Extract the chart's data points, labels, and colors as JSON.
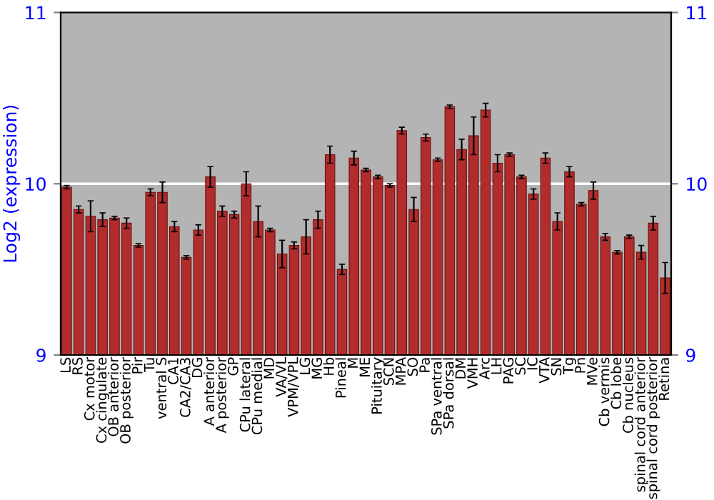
{
  "chart_data": {
    "type": "bar",
    "ylabel": "Log2 (expression)",
    "categories": [
      "LS",
      "RS",
      "Cx motor",
      "Cx cingulate",
      "OB anterior",
      "OB posterior",
      "Pir",
      "Tu",
      "ventral S",
      "CA1",
      "CA2/CA3",
      "DG",
      "A anterior",
      "A posterior",
      "GP",
      "CPu lateral",
      "CPu medial",
      "MD",
      "VA/VL",
      "VPM/VPL",
      "LG",
      "MG",
      "Hb",
      "Pineal",
      "M",
      "ME",
      "Pituitary",
      "SCN",
      "MPA",
      "SO",
      "Pa",
      "SPa ventral",
      "SPa dorsal",
      "DM",
      "VMH",
      "Arc",
      "LH",
      "PAG",
      "SC",
      "IC",
      "VTA",
      "SN",
      "Tg",
      "Pn",
      "MVe",
      "Cb vermis",
      "Cb lobe",
      "Cb nucleus",
      "spinal cord anterior",
      "spinal cord posterior",
      "Retina"
    ],
    "series": [
      {
        "color": "#b22c2c",
        "values": [
          9.98,
          9.85,
          9.81,
          9.79,
          9.8,
          9.77,
          9.64,
          9.95,
          9.95,
          9.75,
          9.57,
          9.73,
          10.04,
          9.84,
          9.82,
          10.0,
          9.78,
          9.73,
          9.59,
          9.64,
          9.69,
          9.79,
          10.17,
          9.5,
          10.15,
          10.08,
          10.04,
          9.99,
          10.31,
          9.85,
          10.27,
          10.14,
          10.45,
          10.2,
          10.28,
          10.43,
          10.12,
          10.17,
          10.04,
          9.94,
          10.15,
          9.78,
          10.07,
          9.88,
          9.96,
          9.69,
          9.6,
          9.69,
          9.6,
          9.77,
          9.45
        ],
        "errors": [
          0.01,
          0.02,
          0.09,
          0.04,
          0.01,
          0.03,
          0.01,
          0.02,
          0.06,
          0.03,
          0.01,
          0.03,
          0.06,
          0.03,
          0.02,
          0.07,
          0.09,
          0.01,
          0.08,
          0.02,
          0.1,
          0.05,
          0.05,
          0.03,
          0.04,
          0.01,
          0.01,
          0.01,
          0.02,
          0.07,
          0.02,
          0.01,
          0.01,
          0.06,
          0.11,
          0.04,
          0.05,
          0.01,
          0.01,
          0.03,
          0.03,
          0.05,
          0.03,
          0.01,
          0.05,
          0.02,
          0.01,
          0.01,
          0.04,
          0.04,
          0.09
        ]
      }
    ],
    "ylim": [
      9,
      11
    ],
    "yticks": [
      9,
      10,
      11
    ],
    "y2lim": [
      9,
      11
    ],
    "y2ticks": [
      9,
      10,
      11
    ],
    "ref_lines": [
      {
        "axis": "y",
        "value": 10,
        "color": "#ffffff"
      }
    ]
  }
}
